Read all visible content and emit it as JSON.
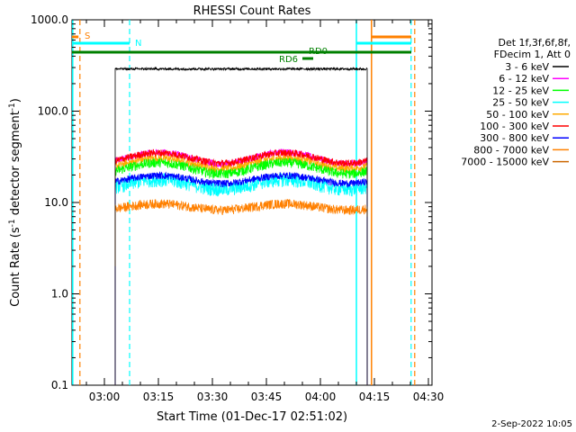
{
  "chart_data": {
    "type": "line",
    "title": "RHESSI Count Rates",
    "xlabel": "Start Time (01-Dec-17 02:51:02)",
    "ylabel_main": "Count Rate (s",
    "ylabel_sup": "-1",
    "ylabel_tail": " detector segment",
    "ylabel_sup2": "-1",
    "ylabel_end": ")",
    "y_scale": "log",
    "ylim": [
      0.1,
      1000.0
    ],
    "y_ticks": [
      {
        "value": 0.1,
        "label": "0.1"
      },
      {
        "value": 1.0,
        "label": "1.0"
      },
      {
        "value": 10.0,
        "label": "10.0"
      },
      {
        "value": 100.0,
        "label": "100.0"
      },
      {
        "value": 1000.0,
        "label": "1000.0"
      }
    ],
    "x_range_minutes_after_0251": [
      0,
      100
    ],
    "x_ticks": [
      {
        "minute": 9,
        "label": "03:00"
      },
      {
        "minute": 24,
        "label": "03:15"
      },
      {
        "minute": 39,
        "label": "03:30"
      },
      {
        "minute": 54,
        "label": "03:45"
      },
      {
        "minute": 69,
        "label": "04:00"
      },
      {
        "minute": 84,
        "label": "04:15"
      },
      {
        "minute": 99,
        "label": "04:30"
      }
    ],
    "legend_header": [
      "Det 1f,3f,6f,8f,",
      "FDecim 1, Att 0"
    ],
    "legend_position": "right",
    "series": [
      {
        "name": "3 - 6 keV",
        "color": "#000000",
        "level": 290,
        "wobble": 0.0,
        "noise": 0.01
      },
      {
        "name": "6 - 12 keV",
        "color": "#ff00ff",
        "level": 31,
        "wobble": 0.14,
        "noise": 0.03
      },
      {
        "name": "12 - 25 keV",
        "color": "#00ff00",
        "level": 24,
        "wobble": 0.14,
        "noise": 0.04
      },
      {
        "name": "25 - 50 keV",
        "color": "#00ffff",
        "level": 16,
        "wobble": 0.12,
        "noise": 0.06
      },
      {
        "name": "50 - 100 keV",
        "color": "#ffaa00",
        "level": 27,
        "wobble": 0.13,
        "noise": 0.035
      },
      {
        "name": "100 - 300 keV",
        "color": "#ff0000",
        "level": 31,
        "wobble": 0.13,
        "noise": 0.03
      },
      {
        "name": "300 - 800 keV",
        "color": "#0000ff",
        "level": 18,
        "wobble": 0.1,
        "noise": 0.03
      },
      {
        "name": "800 - 7000 keV",
        "color": "#ff8000",
        "level": 9,
        "wobble": 0.08,
        "noise": 0.04
      },
      {
        "name": "7000 - 15000 keV",
        "color": "#cc6600",
        "level": null,
        "wobble": 0,
        "noise": 0
      }
    ],
    "data_interval_minutes": [
      12,
      82
    ],
    "annotations": [
      {
        "text": "S",
        "color": "#ff8000"
      },
      {
        "text": "N",
        "color": "#00ffff"
      },
      {
        "text": "RD0",
        "color": "#008000"
      },
      {
        "text": "RD6",
        "color": "#008000"
      }
    ],
    "footer_date": "2-Sep-2022 10:05"
  }
}
